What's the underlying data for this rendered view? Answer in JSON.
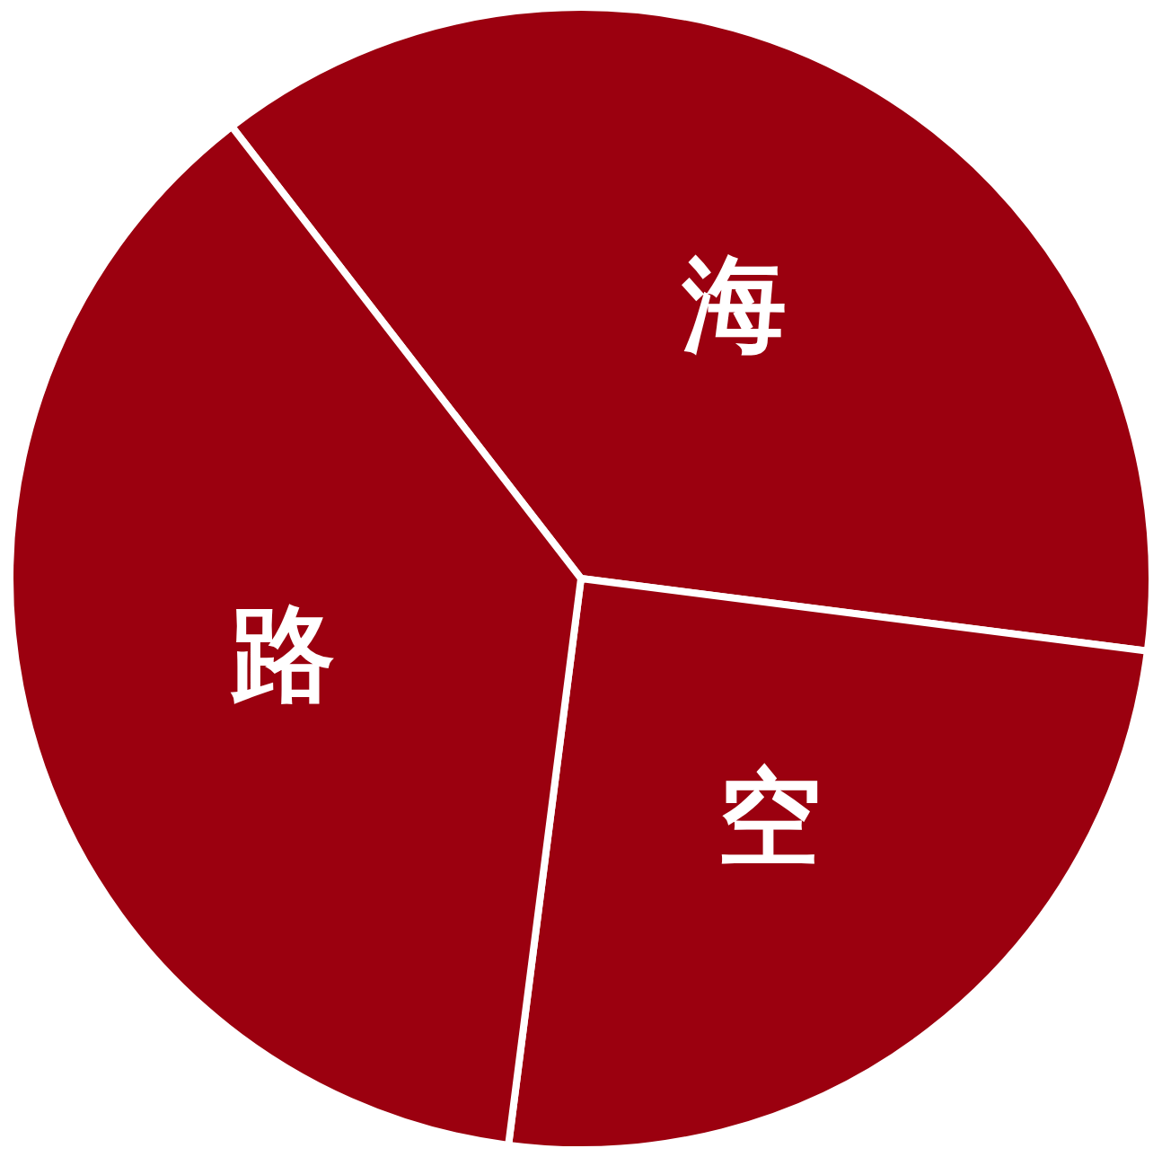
{
  "chart_data": {
    "type": "pie",
    "categories": [
      "海",
      "空",
      "路"
    ],
    "values": [
      37.5,
      25,
      37.5
    ],
    "colors": [
      "#9b000f",
      "#9b000f",
      "#9b000f"
    ],
    "data_labels": false
  }
}
